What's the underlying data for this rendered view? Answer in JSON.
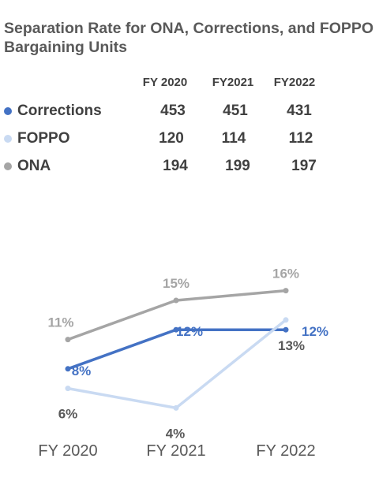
{
  "title": "Separation Rate for ONA, Corrections, and FOPPO Bargaining Units",
  "table": {
    "headers": [
      "FY 2020",
      "FY2021",
      "FY2022"
    ],
    "rows": [
      {
        "name": "Corrections",
        "color": "#4472c4",
        "values": [
          "453",
          "451",
          "431"
        ]
      },
      {
        "name": "FOPPO",
        "color": "#c9daf2",
        "values": [
          "120",
          "114",
          "112"
        ]
      },
      {
        "name": "ONA",
        "color": "#a5a5a5",
        "values": [
          "194",
          "199",
          "197"
        ]
      }
    ]
  },
  "chart_data": {
    "type": "line",
    "x": [
      "FY 2020",
      "FY 2021",
      "FY 2022"
    ],
    "ylim": [
      0,
      18
    ],
    "grid": false,
    "legend": "table above chart",
    "series": [
      {
        "name": "ONA",
        "color": "#a5a5a5",
        "label_color": "#a5a5a5",
        "values": [
          11,
          15,
          16
        ],
        "labels": [
          "11%",
          "15%",
          "16%"
        ]
      },
      {
        "name": "Corrections",
        "color": "#4472c4",
        "label_color": "#4472c4",
        "values": [
          8,
          12,
          12
        ],
        "labels": [
          "8%",
          "12%",
          "12%"
        ]
      },
      {
        "name": "FOPPO",
        "color": "#c9daf2",
        "label_color": "#595959",
        "values": [
          6,
          4,
          13
        ],
        "labels": [
          "6%",
          "4%",
          "13%"
        ]
      }
    ]
  }
}
